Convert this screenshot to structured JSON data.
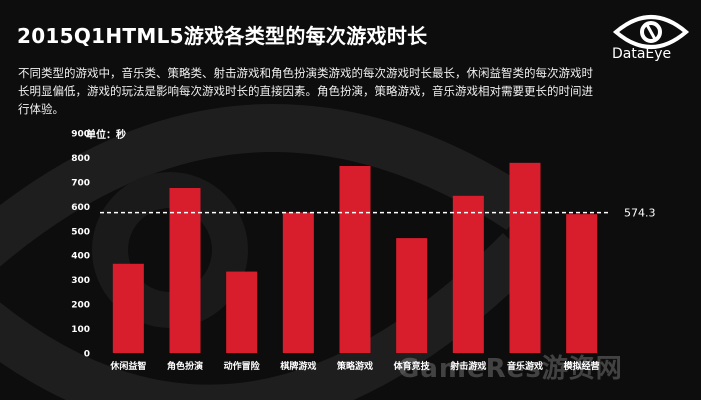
{
  "header": {
    "title": "2015Q1HTML5游戏各类型的每次游戏时长",
    "description": "不同类型的游戏中，音乐类、策略类、射击游戏和角色扮演类游戏的每次游戏时长最长，休闲益智类的每次游戏时长明显偏低，游戏的玩法是影响每次游戏时长的直接因素。角色扮演，策略游戏，音乐游戏相对需要更长的时间进行体验。"
  },
  "logo": {
    "text": "DataEye"
  },
  "watermark": {
    "text": "GameRes游资网"
  },
  "chart_data": {
    "type": "bar",
    "unit_label": "单位：秒",
    "categories": [
      "休闲益智",
      "角色扮演",
      "动作冒险",
      "棋牌游戏",
      "策略游戏",
      "体育竞技",
      "射击游戏",
      "音乐游戏",
      "模拟经营"
    ],
    "values": [
      365,
      675,
      333,
      575,
      765,
      470,
      643,
      778,
      568
    ],
    "average": {
      "value": 574.3,
      "label": "574.3"
    },
    "ylim": [
      0,
      900
    ],
    "yticks": [
      0,
      100,
      200,
      300,
      400,
      500,
      600,
      700,
      800,
      900
    ],
    "grid": false,
    "bar_color": "#d81e2c",
    "average_line_color": "#ffffff"
  }
}
